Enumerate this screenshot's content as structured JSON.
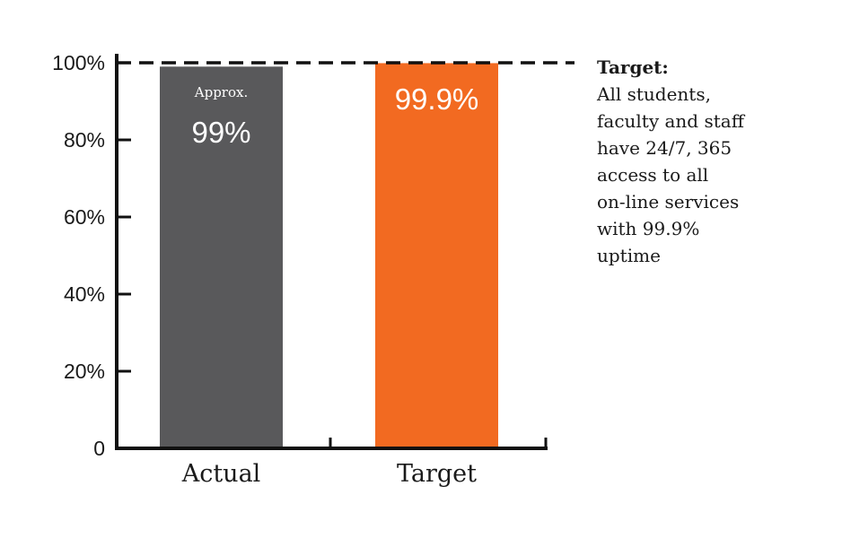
{
  "colors": {
    "actual": "#59595b",
    "target": "#f26a21",
    "axis": "#111111"
  },
  "chart_data": {
    "type": "bar",
    "categories": [
      "Actual",
      "Target"
    ],
    "values": [
      99,
      99.9
    ],
    "ylim": [
      0,
      100
    ],
    "yticks": [
      {
        "value": 0,
        "label": "0"
      },
      {
        "value": 20,
        "label": "20%"
      },
      {
        "value": 40,
        "label": "40%"
      },
      {
        "value": 60,
        "label": "60%"
      },
      {
        "value": 80,
        "label": "80%"
      },
      {
        "value": 100,
        "label": "100%"
      }
    ],
    "data_labels": [
      {
        "prefix": "Approx.",
        "text": "99%"
      },
      {
        "prefix": "",
        "text": "99.9%"
      }
    ],
    "target_line": 100
  },
  "annotation": {
    "title": "Target:",
    "lines": [
      "All students,",
      "faculty and staff",
      "have 24/7, 365",
      "access to all",
      "on-line services",
      "with 99.9%",
      "uptime"
    ]
  }
}
